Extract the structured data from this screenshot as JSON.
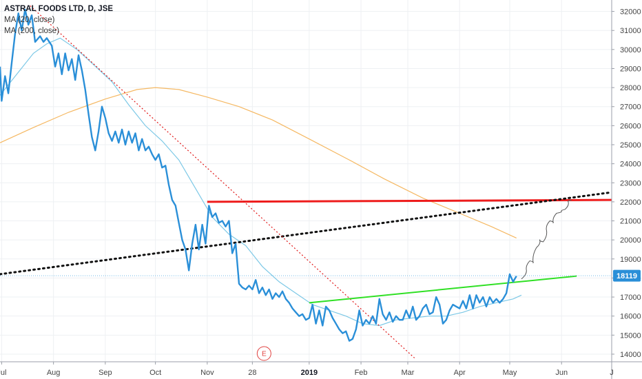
{
  "legend": {
    "title": "ASTRAL FOODS LTD, D, JSE",
    "ma1": "MA (20, close)",
    "ma2": "MA (200, close)"
  },
  "colors": {
    "price": "#2a8fd8",
    "ma20": "#7cc8e6",
    "ma200": "#f5b862",
    "resistance": "#ee1c1c",
    "support": "#2fe024",
    "trend_dotted": "#111111",
    "down_trend": "#e01414",
    "last_price_bg": "#2a8fd8",
    "earnings": "#e0403f"
  },
  "earnings_marker": {
    "label": "E",
    "x": "2018-12-05"
  },
  "last_price": {
    "label": "18119",
    "value": 18119
  },
  "chart_data": {
    "type": "line",
    "title": "ASTRAL FOODS LTD, D, JSE",
    "x_axis_ticks": [
      {
        "x": "2018-07-01",
        "label": "Jul"
      },
      {
        "x": "2018-08-01",
        "label": "Aug"
      },
      {
        "x": "2018-09-01",
        "label": "Sep"
      },
      {
        "x": "2018-10-01",
        "label": "Oct"
      },
      {
        "x": "2018-11-01",
        "label": "Nov"
      },
      {
        "x": "2018-11-28",
        "label": "28"
      },
      {
        "x": "2019-01-01",
        "label": "2019"
      },
      {
        "x": "2019-02-01",
        "label": "Feb"
      },
      {
        "x": "2019-03-01",
        "label": "Mar"
      },
      {
        "x": "2019-04-01",
        "label": "Apr"
      },
      {
        "x": "2019-05-01",
        "label": "May"
      },
      {
        "x": "2019-06-01",
        "label": "Jun"
      },
      {
        "x": "2019-07-01",
        "label": "J"
      }
    ],
    "xlim": [
      "2018-06-30",
      "2019-07-01"
    ],
    "ylim": [
      13600,
      32600
    ],
    "y_ticks": [
      14000,
      15000,
      16000,
      17000,
      18000,
      19000,
      20000,
      21000,
      22000,
      23000,
      24000,
      25000,
      26000,
      27000,
      28000,
      29000,
      30000,
      31000,
      32000
    ],
    "grid": true,
    "series": [
      {
        "name": "ASTRAL FOODS LTD",
        "points": [
          [
            "2018-06-30",
            29100
          ],
          [
            "2018-07-01",
            27300
          ],
          [
            "2018-07-03",
            28600
          ],
          [
            "2018-07-05",
            27700
          ],
          [
            "2018-07-07",
            29300
          ],
          [
            "2018-07-09",
            30800
          ],
          [
            "2018-07-11",
            31900
          ],
          [
            "2018-07-13",
            31000
          ],
          [
            "2018-07-15",
            32100
          ],
          [
            "2018-07-17",
            31300
          ],
          [
            "2018-07-19",
            31800
          ],
          [
            "2018-07-21",
            30400
          ],
          [
            "2018-07-24",
            30700
          ],
          [
            "2018-07-26",
            30400
          ],
          [
            "2018-07-28",
            30600
          ],
          [
            "2018-07-31",
            30200
          ],
          [
            "2018-08-02",
            29100
          ],
          [
            "2018-08-04",
            29800
          ],
          [
            "2018-08-06",
            28700
          ],
          [
            "2018-08-08",
            29800
          ],
          [
            "2018-08-10",
            28900
          ],
          [
            "2018-08-12",
            29500
          ],
          [
            "2018-08-14",
            28400
          ],
          [
            "2018-08-16",
            29700
          ],
          [
            "2018-08-18",
            28900
          ],
          [
            "2018-08-20",
            27900
          ],
          [
            "2018-08-22",
            26600
          ],
          [
            "2018-08-24",
            25400
          ],
          [
            "2018-08-26",
            24700
          ],
          [
            "2018-08-28",
            25700
          ],
          [
            "2018-08-30",
            27000
          ],
          [
            "2018-09-01",
            26400
          ],
          [
            "2018-09-03",
            25600
          ],
          [
            "2018-09-05",
            25200
          ],
          [
            "2018-09-07",
            25700
          ],
          [
            "2018-09-09",
            25100
          ],
          [
            "2018-09-11",
            25800
          ],
          [
            "2018-09-13",
            25000
          ],
          [
            "2018-09-15",
            25700
          ],
          [
            "2018-09-17",
            25100
          ],
          [
            "2018-09-19",
            25600
          ],
          [
            "2018-09-21",
            24700
          ],
          [
            "2018-09-23",
            25300
          ],
          [
            "2018-09-25",
            24700
          ],
          [
            "2018-09-27",
            24900
          ],
          [
            "2018-09-29",
            24500
          ],
          [
            "2018-10-01",
            24200
          ],
          [
            "2018-10-03",
            24500
          ],
          [
            "2018-10-05",
            23800
          ],
          [
            "2018-10-07",
            23900
          ],
          [
            "2018-10-09",
            22900
          ],
          [
            "2018-10-11",
            22100
          ],
          [
            "2018-10-13",
            21800
          ],
          [
            "2018-10-15",
            20900
          ],
          [
            "2018-10-17",
            20000
          ],
          [
            "2018-10-19",
            19500
          ],
          [
            "2018-10-21",
            18400
          ],
          [
            "2018-10-23",
            19800
          ],
          [
            "2018-10-25",
            20800
          ],
          [
            "2018-10-27",
            19500
          ],
          [
            "2018-10-29",
            20800
          ],
          [
            "2018-10-31",
            19800
          ],
          [
            "2018-11-02",
            21800
          ],
          [
            "2018-11-04",
            21200
          ],
          [
            "2018-11-06",
            21400
          ],
          [
            "2018-11-08",
            20900
          ],
          [
            "2018-11-10",
            21000
          ],
          [
            "2018-11-12",
            20700
          ],
          [
            "2018-11-14",
            21000
          ],
          [
            "2018-11-16",
            19300
          ],
          [
            "2018-11-18",
            19800
          ],
          [
            "2018-11-20",
            17700
          ],
          [
            "2018-11-22",
            17500
          ],
          [
            "2018-11-24",
            17400
          ],
          [
            "2018-11-26",
            17600
          ],
          [
            "2018-11-28",
            17400
          ],
          [
            "2018-11-30",
            17900
          ],
          [
            "2018-12-02",
            17200
          ],
          [
            "2018-12-04",
            17500
          ],
          [
            "2018-12-06",
            17100
          ],
          [
            "2018-12-08",
            17400
          ],
          [
            "2018-12-10",
            16900
          ],
          [
            "2018-12-12",
            17200
          ],
          [
            "2018-12-14",
            17000
          ],
          [
            "2018-12-16",
            17300
          ],
          [
            "2018-12-18",
            16900
          ],
          [
            "2018-12-20",
            16700
          ],
          [
            "2018-12-22",
            16400
          ],
          [
            "2018-12-24",
            16200
          ],
          [
            "2018-12-26",
            16000
          ],
          [
            "2018-12-28",
            16100
          ],
          [
            "2018-12-30",
            15800
          ],
          [
            "2019-01-01",
            15900
          ],
          [
            "2019-01-03",
            16600
          ],
          [
            "2019-01-05",
            15600
          ],
          [
            "2019-01-07",
            16300
          ],
          [
            "2019-01-09",
            15500
          ],
          [
            "2019-01-11",
            16500
          ],
          [
            "2019-01-13",
            16300
          ],
          [
            "2019-01-15",
            15900
          ],
          [
            "2019-01-17",
            15600
          ],
          [
            "2019-01-19",
            15300
          ],
          [
            "2019-01-21",
            15100
          ],
          [
            "2019-01-23",
            15200
          ],
          [
            "2019-01-25",
            14700
          ],
          [
            "2019-01-27",
            14800
          ],
          [
            "2019-01-29",
            15300
          ],
          [
            "2019-01-31",
            16300
          ],
          [
            "2019-02-02",
            15500
          ],
          [
            "2019-02-04",
            15800
          ],
          [
            "2019-02-06",
            15600
          ],
          [
            "2019-02-08",
            16000
          ],
          [
            "2019-02-10",
            15600
          ],
          [
            "2019-02-12",
            16900
          ],
          [
            "2019-02-14",
            16100
          ],
          [
            "2019-02-16",
            15800
          ],
          [
            "2019-02-18",
            16200
          ],
          [
            "2019-02-20",
            15700
          ],
          [
            "2019-02-22",
            16000
          ],
          [
            "2019-02-24",
            15800
          ],
          [
            "2019-02-26",
            15800
          ],
          [
            "2019-02-28",
            16300
          ],
          [
            "2019-03-02",
            15900
          ],
          [
            "2019-03-04",
            16500
          ],
          [
            "2019-03-06",
            15800
          ],
          [
            "2019-03-08",
            16000
          ],
          [
            "2019-03-10",
            16400
          ],
          [
            "2019-03-12",
            16600
          ],
          [
            "2019-03-14",
            16100
          ],
          [
            "2019-03-16",
            16200
          ],
          [
            "2019-03-18",
            17000
          ],
          [
            "2019-03-20",
            16600
          ],
          [
            "2019-03-22",
            15600
          ],
          [
            "2019-03-24",
            15800
          ],
          [
            "2019-03-26",
            16300
          ],
          [
            "2019-03-28",
            16600
          ],
          [
            "2019-03-30",
            16500
          ],
          [
            "2019-04-01",
            16400
          ],
          [
            "2019-04-03",
            16800
          ],
          [
            "2019-04-05",
            16400
          ],
          [
            "2019-04-07",
            17100
          ],
          [
            "2019-04-09",
            16400
          ],
          [
            "2019-04-11",
            17100
          ],
          [
            "2019-04-13",
            16700
          ],
          [
            "2019-04-15",
            17000
          ],
          [
            "2019-04-17",
            16500
          ],
          [
            "2019-04-19",
            17000
          ],
          [
            "2019-04-21",
            16700
          ],
          [
            "2019-04-23",
            16900
          ],
          [
            "2019-04-25",
            16700
          ],
          [
            "2019-04-27",
            16900
          ],
          [
            "2019-04-29",
            17200
          ],
          [
            "2019-05-01",
            18200
          ],
          [
            "2019-05-03",
            17800
          ],
          [
            "2019-05-05",
            18100
          ]
        ]
      },
      {
        "name": "MA (20, close)",
        "points": [
          [
            "2018-06-30",
            27600
          ],
          [
            "2018-07-10",
            28700
          ],
          [
            "2018-07-20",
            29800
          ],
          [
            "2018-07-28",
            30300
          ],
          [
            "2018-08-05",
            30600
          ],
          [
            "2018-08-15",
            30000
          ],
          [
            "2018-08-25",
            29200
          ],
          [
            "2018-09-05",
            28300
          ],
          [
            "2018-09-15",
            27100
          ],
          [
            "2018-09-25",
            26000
          ],
          [
            "2018-10-05",
            25200
          ],
          [
            "2018-10-15",
            24200
          ],
          [
            "2018-10-25",
            22700
          ],
          [
            "2018-11-04",
            21200
          ],
          [
            "2018-11-14",
            20300
          ],
          [
            "2018-11-24",
            19700
          ],
          [
            "2018-12-04",
            18600
          ],
          [
            "2018-12-14",
            17800
          ],
          [
            "2018-12-24",
            17200
          ],
          [
            "2019-01-03",
            16600
          ],
          [
            "2019-01-13",
            16300
          ],
          [
            "2019-01-23",
            16000
          ],
          [
            "2019-02-02",
            15600
          ],
          [
            "2019-02-12",
            15500
          ],
          [
            "2019-02-22",
            15800
          ],
          [
            "2019-03-04",
            15900
          ],
          [
            "2019-03-14",
            16000
          ],
          [
            "2019-03-24",
            16000
          ],
          [
            "2019-04-03",
            16200
          ],
          [
            "2019-04-13",
            16500
          ],
          [
            "2019-04-23",
            16700
          ],
          [
            "2019-05-03",
            16900
          ],
          [
            "2019-05-08",
            17100
          ]
        ]
      },
      {
        "name": "MA (200, close)",
        "points": [
          [
            "2018-06-30",
            25100
          ],
          [
            "2018-07-20",
            25900
          ],
          [
            "2018-08-10",
            26700
          ],
          [
            "2018-09-01",
            27400
          ],
          [
            "2018-09-20",
            27900
          ],
          [
            "2018-10-01",
            28000
          ],
          [
            "2018-10-15",
            27900
          ],
          [
            "2018-11-01",
            27500
          ],
          [
            "2018-11-20",
            27000
          ],
          [
            "2018-12-10",
            26300
          ],
          [
            "2019-01-01",
            25300
          ],
          [
            "2019-01-25",
            24200
          ],
          [
            "2019-02-15",
            23200
          ],
          [
            "2019-03-10",
            22200
          ],
          [
            "2019-04-01",
            21400
          ],
          [
            "2019-04-20",
            20700
          ],
          [
            "2019-05-05",
            20100
          ]
        ]
      }
    ],
    "annotations": [
      {
        "kind": "horizontal_trendline",
        "color": "red",
        "from": [
          "2018-11-01",
          22000
        ],
        "to": [
          "2019-07-01",
          22100
        ]
      },
      {
        "kind": "dotted_trendline",
        "color": "black",
        "from": [
          "2018-06-30",
          18200
        ],
        "to": [
          "2019-07-01",
          22500
        ]
      },
      {
        "kind": "dotted_trendline",
        "color": "red",
        "from": [
          "2018-07-18",
          32300
        ],
        "to": [
          "2019-03-05",
          13800
        ]
      },
      {
        "kind": "support_trendline",
        "color": "green",
        "from": [
          "2019-01-01",
          16700
        ],
        "to": [
          "2019-06-10",
          18100
        ]
      },
      {
        "kind": "horizontal_line",
        "color": "lightblue",
        "y": 18119
      },
      {
        "kind": "projection_path",
        "color": "gray",
        "points": [
          [
            "2019-05-08",
            17950
          ],
          [
            "2019-05-11",
            18400
          ],
          [
            "2019-05-13",
            18900
          ],
          [
            "2019-05-15",
            18800
          ],
          [
            "2019-05-17",
            19600
          ],
          [
            "2019-05-19",
            20000
          ],
          [
            "2019-05-21",
            19900
          ],
          [
            "2019-05-23",
            20500
          ],
          [
            "2019-05-25",
            21000
          ],
          [
            "2019-05-27",
            20900
          ],
          [
            "2019-05-29",
            21400
          ],
          [
            "2019-06-01",
            21500
          ],
          [
            "2019-06-03",
            21600
          ],
          [
            "2019-06-05",
            22000
          ],
          [
            "2019-06-07",
            22100
          ]
        ]
      }
    ]
  }
}
